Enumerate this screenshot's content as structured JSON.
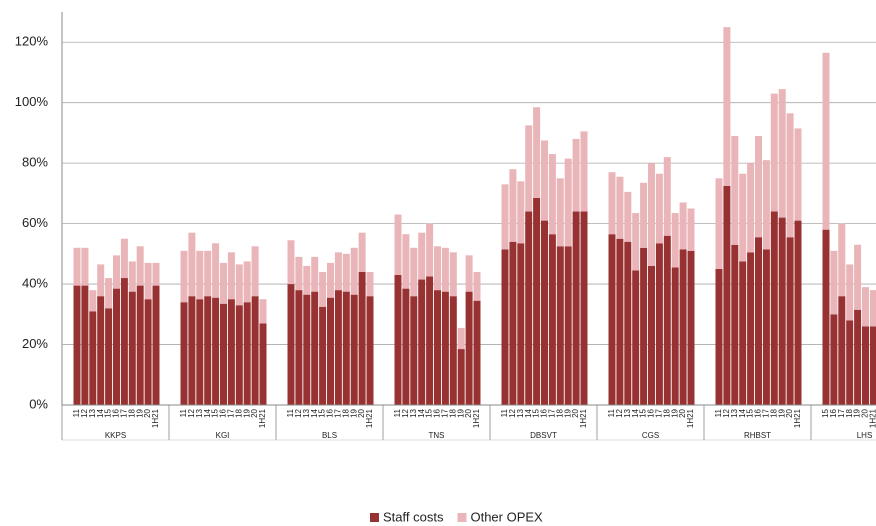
{
  "chart_data": {
    "type": "bar",
    "stacked": true,
    "groups": [
      {
        "name": "KKPS",
        "categories": [
          "11",
          "12",
          "13",
          "14",
          "15",
          "16",
          "17",
          "18",
          "19",
          "20",
          "1H21"
        ]
      },
      {
        "name": "KGI",
        "categories": [
          "11",
          "12",
          "13",
          "14",
          "15",
          "16",
          "17",
          "18",
          "19",
          "20",
          "1H21"
        ]
      },
      {
        "name": "BLS",
        "categories": [
          "11",
          "12",
          "13",
          "14",
          "15",
          "16",
          "17",
          "18",
          "19",
          "20",
          "1H21"
        ]
      },
      {
        "name": "TNS",
        "categories": [
          "11",
          "12",
          "13",
          "14",
          "15",
          "16",
          "17",
          "18",
          "19",
          "20",
          "1H21"
        ]
      },
      {
        "name": "DBSVT",
        "categories": [
          "11",
          "12",
          "13",
          "14",
          "15",
          "16",
          "17",
          "18",
          "19",
          "20",
          "1H21"
        ]
      },
      {
        "name": "CGS",
        "categories": [
          "11",
          "12",
          "13",
          "14",
          "15",
          "16",
          "17",
          "18",
          "19",
          "20",
          "1H21"
        ]
      },
      {
        "name": "RHBST",
        "categories": [
          "11",
          "12",
          "13",
          "14",
          "15",
          "16",
          "17",
          "18",
          "19",
          "20",
          "1H21"
        ]
      },
      {
        "name": "LHS",
        "categories": [
          "15",
          "16",
          "17",
          "18",
          "19",
          "20",
          "1H21"
        ]
      }
    ],
    "series": [
      {
        "name": "Staff costs",
        "color": "#983232",
        "values": [
          39.5,
          39.5,
          31,
          36,
          32,
          38.5,
          42,
          37.5,
          39.5,
          35,
          39.5,
          34,
          36,
          35,
          36,
          35.5,
          33.5,
          35,
          33,
          34,
          36,
          27,
          40,
          38,
          36.5,
          37.5,
          32.5,
          35.5,
          38,
          37.5,
          36.5,
          44,
          36,
          43,
          38.5,
          36,
          41.5,
          42.5,
          38,
          37.5,
          36,
          18.5,
          37.5,
          34.5,
          51.5,
          54,
          53.5,
          64,
          68.5,
          61,
          56.5,
          52.5,
          52.5,
          64,
          64,
          56.5,
          55,
          54,
          44.5,
          52,
          46,
          53.5,
          56,
          45.5,
          51.5,
          51,
          45,
          72.5,
          53,
          47.5,
          50.5,
          55.5,
          51.5,
          64,
          62,
          55.5,
          61,
          58,
          30,
          36,
          28,
          31.5,
          26,
          26
        ]
      },
      {
        "name": "Other OPEX",
        "color": "#e9b5b9",
        "values": [
          12.5,
          12.5,
          7,
          10.5,
          10,
          11,
          13,
          10,
          13,
          12,
          7.5,
          17,
          21,
          16,
          15,
          18,
          13.5,
          15.5,
          13.5,
          13.5,
          16.5,
          8,
          14.5,
          11,
          9.5,
          11.5,
          11.5,
          11.5,
          12.5,
          12.5,
          15.5,
          13,
          8,
          20,
          18,
          16,
          15.5,
          17.5,
          14.5,
          14.5,
          14.5,
          7,
          12,
          9.5,
          21.5,
          24,
          20.5,
          28.5,
          30,
          26.5,
          26.5,
          22.5,
          29,
          24,
          26.5,
          20.5,
          20.5,
          16.5,
          19,
          21.5,
          34,
          23,
          26,
          18,
          15.5,
          14,
          30,
          52.5,
          36,
          29,
          29.5,
          33.5,
          29.5,
          39,
          42.5,
          41,
          30.5,
          58.5,
          21,
          24,
          18.5,
          21.5,
          13,
          12
        ]
      }
    ],
    "ylim": [
      0,
      130
    ],
    "yticks": [
      {
        "value": 0,
        "label": "0%"
      },
      {
        "value": 20,
        "label": "20%"
      },
      {
        "value": 40,
        "label": "40%"
      },
      {
        "value": 60,
        "label": "60%"
      },
      {
        "value": 80,
        "label": "80%"
      },
      {
        "value": 100,
        "label": "100%"
      },
      {
        "value": 120,
        "label": "120%"
      }
    ],
    "grid": true,
    "legend": "bottom"
  }
}
